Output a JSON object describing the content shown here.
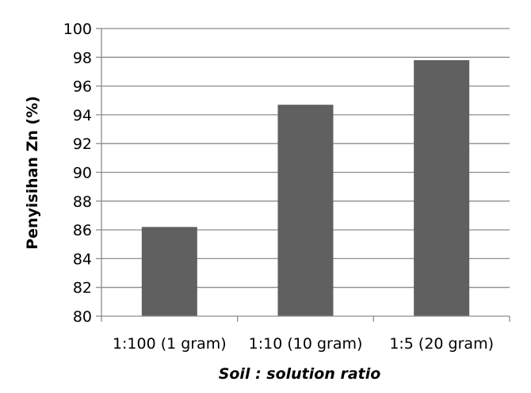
{
  "chart_data": {
    "type": "bar",
    "categories": [
      "1:100 (1 gram)",
      "1:10 (10 gram)",
      "1:5 (20 gram)"
    ],
    "values": [
      86.2,
      94.7,
      97.8
    ],
    "title": "",
    "xlabel": "Soil : solution ratio",
    "ylabel": "Penyisihan Zn (%)",
    "ylim": [
      80,
      100
    ],
    "yticks": [
      80,
      82,
      84,
      86,
      88,
      90,
      92,
      94,
      96,
      98,
      100
    ],
    "grid": true,
    "legend": "none",
    "colors": {
      "bar": "#606060",
      "grid": "#8c8c8c",
      "axis": "#8c8c8c"
    }
  }
}
